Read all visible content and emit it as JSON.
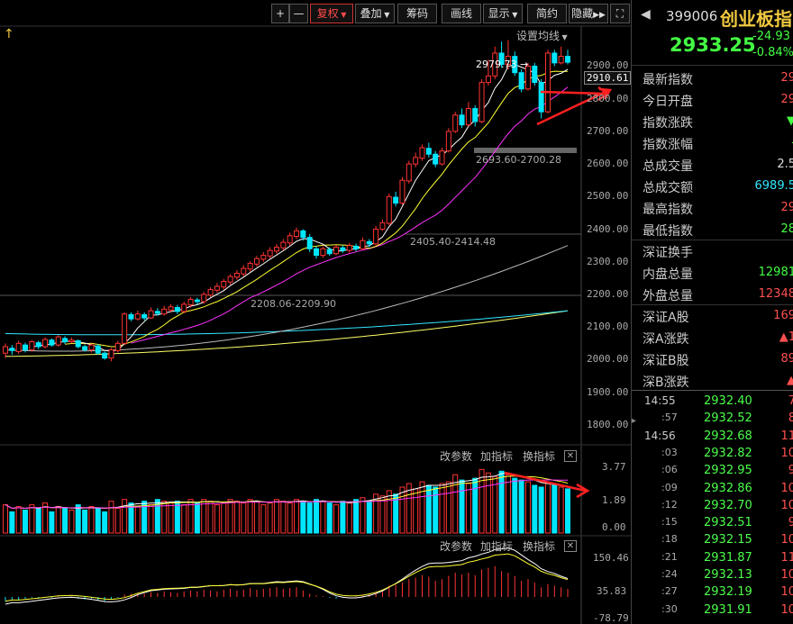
{
  "toolbar": {
    "plus": "+",
    "minus": "—",
    "fuquan": "复权",
    "diejia": "叠加",
    "chouma": "筹码",
    "huaxian": "画线",
    "xianshi": "显示",
    "jianyue": "简约",
    "yincang": "隐藏"
  },
  "main_chart": {
    "settings_label": "设置均线",
    "annotations": {
      "high": "2979.73",
      "range1": "2693.60-2700.28",
      "range2": "2405.40-2414.48",
      "range3": "2208.06-2209.90"
    },
    "current_price_tag": "2910.61",
    "y_ticks": [
      "2900.00",
      "2800.00",
      "2700.00",
      "2600.00",
      "2500.00",
      "2400.00",
      "2300.00",
      "2200.00",
      "2100.00",
      "2000.00",
      "1900.00",
      "1800.00"
    ]
  },
  "sub1": {
    "labels": [
      "改参数",
      "加指标",
      "换指标"
    ],
    "y_ticks": [
      "3.77",
      "1.89",
      "0.00"
    ]
  },
  "sub2": {
    "labels": [
      "改参数",
      "加指标",
      "换指标"
    ],
    "y_ticks": [
      "150.46",
      "35.83",
      "-78.79"
    ]
  },
  "chart_data": {
    "type": "candlestick",
    "ylim": [
      1750,
      3020
    ],
    "colors": {
      "up": "#ff3333",
      "down": "#00e6ff",
      "ma5": "#ffffff",
      "ma10": "#ffff33",
      "ma20": "#ff33ff",
      "ma60": "#bbbbbb",
      "ma120": "#33e6ff",
      "ma250": "#ffff66"
    },
    "candles": [
      [
        2020,
        2040,
        2005,
        2050
      ],
      [
        2035,
        2028,
        2015,
        2045
      ],
      [
        2025,
        2050,
        2018,
        2058
      ],
      [
        2045,
        2030,
        2022,
        2052
      ],
      [
        2030,
        2055,
        2025,
        2060
      ],
      [
        2052,
        2040,
        2032,
        2058
      ],
      [
        2040,
        2062,
        2035,
        2068
      ],
      [
        2060,
        2045,
        2040,
        2065
      ],
      [
        2045,
        2070,
        2040,
        2075
      ],
      [
        2065,
        2055,
        2048,
        2072
      ],
      [
        2055,
        2060,
        2050,
        2068
      ],
      [
        2058,
        2040,
        2035,
        2062
      ],
      [
        2040,
        2030,
        2025,
        2045
      ],
      [
        2030,
        2045,
        2022,
        2050
      ],
      [
        2042,
        2020,
        2015,
        2048
      ],
      [
        2020,
        2005,
        2000,
        2025
      ],
      [
        2005,
        2030,
        1995,
        2035
      ],
      [
        2028,
        2050,
        2022,
        2058
      ],
      [
        2050,
        2140,
        2045,
        2145
      ],
      [
        2138,
        2125,
        2118,
        2145
      ],
      [
        2125,
        2140,
        2120,
        2150
      ],
      [
        2138,
        2128,
        2120,
        2145
      ],
      [
        2128,
        2150,
        2125,
        2160
      ],
      [
        2148,
        2142,
        2135,
        2158
      ],
      [
        2140,
        2155,
        2135,
        2165
      ],
      [
        2152,
        2162,
        2145,
        2170
      ],
      [
        2160,
        2148,
        2140,
        2168
      ],
      [
        2148,
        2170,
        2142,
        2178
      ],
      [
        2168,
        2185,
        2160,
        2192
      ],
      [
        2183,
        2178,
        2170,
        2190
      ],
      [
        2178,
        2200,
        2172,
        2208
      ],
      [
        2198,
        2215,
        2192,
        2222
      ],
      [
        2213,
        2225,
        2205,
        2235
      ],
      [
        2223,
        2240,
        2215,
        2248
      ],
      [
        2238,
        2255,
        2230,
        2262
      ],
      [
        2253,
        2265,
        2245,
        2275
      ],
      [
        2263,
        2280,
        2255,
        2290
      ],
      [
        2278,
        2295,
        2270,
        2302
      ],
      [
        2293,
        2310,
        2285,
        2318
      ],
      [
        2308,
        2320,
        2300,
        2330
      ],
      [
        2318,
        2335,
        2310,
        2345
      ],
      [
        2333,
        2345,
        2325,
        2355
      ],
      [
        2343,
        2360,
        2335,
        2370
      ],
      [
        2358,
        2380,
        2350,
        2390
      ],
      [
        2378,
        2395,
        2370,
        2405
      ],
      [
        2395,
        2375,
        2365,
        2400
      ],
      [
        2375,
        2340,
        2330,
        2385
      ],
      [
        2340,
        2320,
        2310,
        2348
      ],
      [
        2320,
        2340,
        2312,
        2348
      ],
      [
        2338,
        2325,
        2318,
        2345
      ],
      [
        2325,
        2345,
        2320,
        2352
      ],
      [
        2343,
        2335,
        2328,
        2350
      ],
      [
        2335,
        2350,
        2328,
        2358
      ],
      [
        2348,
        2340,
        2332,
        2356
      ],
      [
        2340,
        2365,
        2335,
        2375
      ],
      [
        2362,
        2355,
        2345,
        2370
      ],
      [
        2355,
        2400,
        2350,
        2410
      ],
      [
        2400,
        2420,
        2395,
        2430
      ],
      [
        2418,
        2500,
        2412,
        2510
      ],
      [
        2498,
        2480,
        2470,
        2515
      ],
      [
        2480,
        2550,
        2475,
        2560
      ],
      [
        2548,
        2600,
        2540,
        2610
      ],
      [
        2600,
        2620,
        2590,
        2635
      ],
      [
        2618,
        2650,
        2610,
        2660
      ],
      [
        2648,
        2630,
        2620,
        2665
      ],
      [
        2630,
        2600,
        2590,
        2640
      ],
      [
        2600,
        2640,
        2595,
        2650
      ],
      [
        2640,
        2700,
        2635,
        2710
      ],
      [
        2700,
        2750,
        2695,
        2760
      ],
      [
        2750,
        2720,
        2710,
        2770
      ],
      [
        2720,
        2770,
        2715,
        2790
      ],
      [
        2770,
        2730,
        2715,
        2780
      ],
      [
        2730,
        2850,
        2725,
        2860
      ],
      [
        2850,
        2870,
        2840,
        2920
      ],
      [
        2870,
        2940,
        2860,
        2960
      ],
      [
        2940,
        2905,
        2895,
        2975
      ],
      [
        2905,
        2930,
        2890,
        2980
      ],
      [
        2930,
        2880,
        2870,
        2945
      ],
      [
        2880,
        2830,
        2820,
        2890
      ],
      [
        2830,
        2900,
        2825,
        2910
      ],
      [
        2900,
        2850,
        2840,
        2910
      ],
      [
        2850,
        2760,
        2740,
        2860
      ],
      [
        2760,
        2940,
        2755,
        2950
      ],
      [
        2940,
        2910,
        2900,
        2950
      ],
      [
        2910,
        2930,
        2905,
        2960
      ],
      [
        2930,
        2912,
        2905,
        2950
      ]
    ],
    "vol": [
      1.6,
      1.2,
      1.5,
      1.3,
      1.6,
      1.4,
      1.7,
      1.2,
      1.5,
      1.4,
      1.3,
      1.6,
      1.3,
      1.5,
      1.4,
      1.2,
      1.8,
      1.4,
      1.9,
      1.7,
      1.5,
      1.8,
      1.6,
      1.9,
      1.8,
      1.7,
      1.8,
      1.6,
      1.9,
      1.7,
      1.9,
      1.8,
      1.6,
      1.7,
      1.9,
      1.8,
      1.7,
      1.9,
      1.8,
      1.6,
      1.7,
      1.9,
      1.8,
      1.7,
      1.9,
      1.8,
      1.7,
      1.9,
      1.8,
      1.7,
      1.6,
      1.8,
      1.7,
      1.9,
      2.0,
      1.8,
      2.2,
      2.1,
      2.4,
      2.2,
      2.6,
      2.8,
      2.5,
      2.9,
      2.7,
      2.6,
      2.8,
      2.9,
      3.3,
      3.0,
      2.8,
      3.1,
      3.6,
      3.4,
      3.2,
      3.5,
      3.3,
      3.1,
      3.0,
      2.9,
      2.7,
      2.6,
      2.8,
      2.7,
      2.6,
      2.5
    ],
    "macd": [
      -5,
      -3,
      -4,
      -2,
      -1,
      -2,
      0,
      -1,
      1,
      0,
      -1,
      -2,
      -3,
      -2,
      -4,
      -5,
      -3,
      -1,
      3,
      4,
      5,
      4,
      6,
      5,
      7,
      6,
      5,
      7,
      8,
      7,
      9,
      8,
      7,
      9,
      10,
      8,
      9,
      11,
      9,
      10,
      11,
      12,
      10,
      11,
      12,
      8,
      4,
      2,
      1,
      -1,
      -2,
      -1,
      0,
      1,
      2,
      3,
      6,
      9,
      14,
      15,
      18,
      22,
      24,
      27,
      25,
      20,
      22,
      26,
      30,
      28,
      30,
      27,
      34,
      36,
      38,
      32,
      30,
      26,
      20,
      22,
      18,
      12,
      16,
      14,
      12,
      10
    ]
  },
  "quote": {
    "code": "399006",
    "name": "创业板指",
    "price": "2933.25",
    "change": "-24.93",
    "change_pct": "-0.84%"
  },
  "info_rows": [
    {
      "label": "最新指数",
      "value": "29",
      "color": "#ff5050"
    },
    {
      "label": "今日开盘",
      "value": "29",
      "color": "#ff5050"
    },
    {
      "label": "指数涨跌",
      "value": "▼",
      "color": "#44ff44"
    },
    {
      "label": "指数涨幅",
      "value": "-",
      "color": "#44ff44"
    },
    {
      "label": "总成交量",
      "value": "2.5",
      "color": "#dddddd"
    },
    {
      "label": "总成交额",
      "value": "6989.5",
      "color": "#33e6ff"
    },
    {
      "label": "最高指数",
      "value": "29",
      "color": "#ff5050"
    },
    {
      "label": "最低指数",
      "value": "28",
      "color": "#44ff44"
    },
    {
      "label": "深证换手",
      "value": "",
      "color": "#dddddd"
    },
    {
      "label": "内盘总量",
      "value": "12981",
      "color": "#44ff44"
    },
    {
      "label": "外盘总量",
      "value": "12348",
      "color": "#ff5050"
    },
    {
      "label": "深证A股",
      "value": "169",
      "color": "#ff5050"
    },
    {
      "label": "深A涨跌",
      "value": "▲1",
      "color": "#ff5050"
    },
    {
      "label": "深证B股",
      "value": "89",
      "color": "#ff5050"
    },
    {
      "label": "深B涨跌",
      "value": "▲",
      "color": "#ff5050"
    }
  ],
  "ticks": [
    {
      "time": "14:55",
      "price": "2932.40",
      "vol": "7"
    },
    {
      "time": ":57",
      "price": "2932.52",
      "vol": "8"
    },
    {
      "time": "14:56",
      "price": "2932.68",
      "vol": "11"
    },
    {
      "time": ":03",
      "price": "2932.82",
      "vol": "10"
    },
    {
      "time": ":06",
      "price": "2932.95",
      "vol": "9"
    },
    {
      "time": ":09",
      "price": "2932.86",
      "vol": "10"
    },
    {
      "time": ":12",
      "price": "2932.70",
      "vol": "10"
    },
    {
      "time": ":15",
      "price": "2932.51",
      "vol": "9"
    },
    {
      "time": ":18",
      "price": "2932.15",
      "vol": "10"
    },
    {
      "time": ":21",
      "price": "2931.87",
      "vol": "11"
    },
    {
      "time": ":24",
      "price": "2932.13",
      "vol": "10"
    },
    {
      "time": ":27",
      "price": "2932.19",
      "vol": "10"
    },
    {
      "time": ":30",
      "price": "2931.91",
      "vol": "10"
    }
  ]
}
